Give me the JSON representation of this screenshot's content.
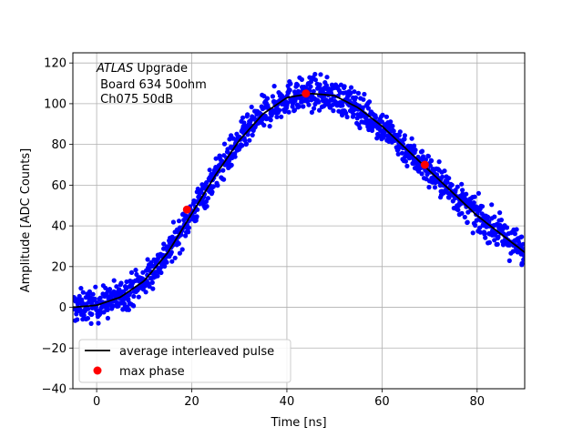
{
  "chart_data": {
    "type": "scatter",
    "xlabel": "Time [ns]",
    "ylabel": "Amplitude [ADC Counts]",
    "xlim": [
      -5,
      90
    ],
    "ylim": [
      -40,
      125
    ],
    "xticks": [
      0,
      20,
      40,
      60,
      80
    ],
    "yticks": [
      -40,
      -20,
      0,
      20,
      40,
      60,
      80,
      100,
      120
    ],
    "xtick_labels": [
      "0",
      "20",
      "40",
      "60",
      "80"
    ],
    "ytick_labels": [
      "−40",
      "−20",
      "0",
      "20",
      "40",
      "60",
      "80",
      "100",
      "120"
    ],
    "grid": true,
    "legend_position": "lower-left",
    "annotation": {
      "line1_italic": "ATLAS",
      "line1_rest": " Upgrade",
      "line2": " Board 634 50ohm",
      "line3": " Ch075 50dB"
    },
    "series": [
      {
        "name": "",
        "kind": "scatter",
        "color": "#0000ff",
        "marker": "dot",
        "n_points": 1300,
        "noise_amplitude": 4,
        "description_curve": "follows average pulse"
      },
      {
        "name": "average interleaved pulse",
        "kind": "line",
        "color": "#000000",
        "x": [
          -5,
          0,
          5,
          10,
          15,
          20,
          25,
          30,
          35,
          40,
          45,
          50,
          55,
          60,
          65,
          70,
          75,
          80,
          85,
          90
        ],
        "y": [
          0,
          1,
          5,
          13,
          27,
          46,
          65,
          82,
          95,
          103,
          105,
          104,
          98,
          89,
          78,
          67,
          56,
          45,
          36,
          27
        ]
      },
      {
        "name": "max phase",
        "kind": "points",
        "color": "#ff0000",
        "x": [
          19,
          44,
          69
        ],
        "y": [
          48,
          105,
          70
        ]
      }
    ]
  }
}
